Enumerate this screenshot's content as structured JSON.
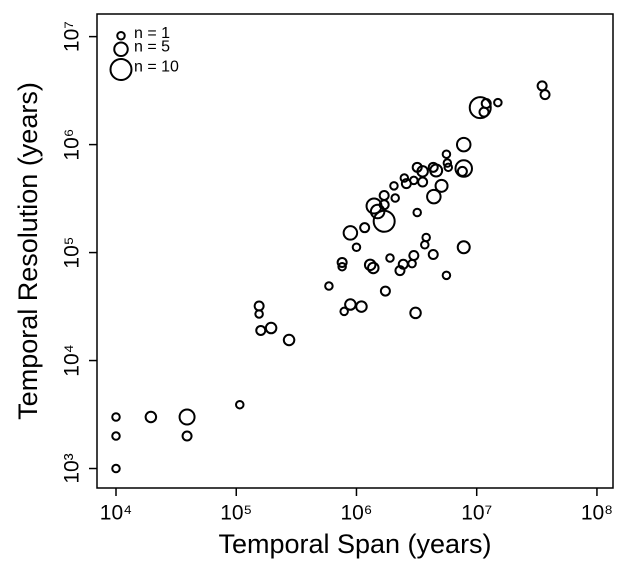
{
  "chart_data": {
    "type": "bubble",
    "x_label": "Temporal Span (years)",
    "y_label": "Temporal Resolution (years)",
    "log_x": true,
    "log_y": true,
    "xlim": [
      6950,
      136000000
    ],
    "ylim": [
      660,
      16200000
    ],
    "xticks": [
      {
        "value": 10000,
        "label": "10⁴"
      },
      {
        "value": 100000,
        "label": "10⁵"
      },
      {
        "value": 1000000,
        "label": "10⁶"
      },
      {
        "value": 10000000,
        "label": "10⁷"
      },
      {
        "value": 100000000,
        "label": "10⁸"
      }
    ],
    "yticks": [
      {
        "value": 1000,
        "label": "10³"
      },
      {
        "value": 10000,
        "label": "10⁴"
      },
      {
        "value": 100000,
        "label": "10⁵"
      },
      {
        "value": 1000000,
        "label": "10⁶"
      },
      {
        "value": 10000000,
        "label": "10⁷"
      }
    ],
    "legend_position": "top-left",
    "legend": [
      {
        "label": "n = 1",
        "size": 1
      },
      {
        "label": "n = 5",
        "size": 5
      },
      {
        "label": "n = 10",
        "size": 10
      }
    ],
    "color": "#000000",
    "x": [
      10000,
      10000,
      10000,
      19500,
      39000,
      39000,
      107000,
      155000,
      155000,
      160000,
      195000,
      275000,
      590000,
      760000,
      760000,
      790000,
      890000,
      1100000,
      890000,
      1000000,
      1170000,
      1300000,
      1380000,
      1400000,
      1500000,
      1700000,
      1700000,
      1700000,
      1740000,
      1900000,
      2100000,
      2050000,
      2300000,
      2450000,
      2500000,
      2600000,
      2900000,
      3000000,
      3100000,
      3000000,
      3200000,
      3200000,
      3550000,
      3550000,
      3700000,
      3800000,
      4350000,
      4350000,
      4400000,
      4600000,
      5100000,
      5600000,
      5600000,
      5700000,
      5800000,
      7600000,
      7800000,
      7800000,
      7800000,
      10700000,
      11500000,
      12000000,
      15000000,
      35000000,
      37000000
    ],
    "values": [
      1000,
      2000,
      3000,
      3000,
      3000,
      2000,
      3900,
      32000,
      27000,
      19000,
      20000,
      15500,
      49000,
      81000,
      74000,
      28500,
      33000,
      31600,
      152000,
      112000,
      170000,
      77000,
      72000,
      270000,
      240000,
      195000,
      277000,
      338000,
      44000,
      89000,
      320000,
      415000,
      68000,
      78000,
      490000,
      435000,
      79000,
      94000,
      27600,
      466000,
      235000,
      616000,
      450000,
      565000,
      118000,
      138000,
      616000,
      96000,
      330000,
      575000,
      415000,
      61500,
      815000,
      675000,
      616000,
      565000,
      1000000,
      600000,
      112000,
      2200000,
      2000000,
      2400000,
      2450000,
      3500000,
      2900000
    ],
    "sizes": [
      1,
      1,
      1,
      3,
      6,
      2,
      1,
      2,
      1,
      2,
      3,
      3,
      1,
      2,
      1,
      1,
      3,
      3,
      5,
      1,
      2,
      3,
      3,
      6,
      5,
      10,
      2,
      2,
      2,
      1,
      1,
      1,
      2,
      2,
      1,
      2,
      1,
      2,
      3,
      1,
      1,
      2,
      2,
      3,
      1,
      1,
      2,
      2,
      5,
      4,
      4,
      1,
      1,
      1,
      1,
      2,
      5,
      7,
      4,
      10,
      2,
      2,
      1,
      2,
      2
    ]
  }
}
